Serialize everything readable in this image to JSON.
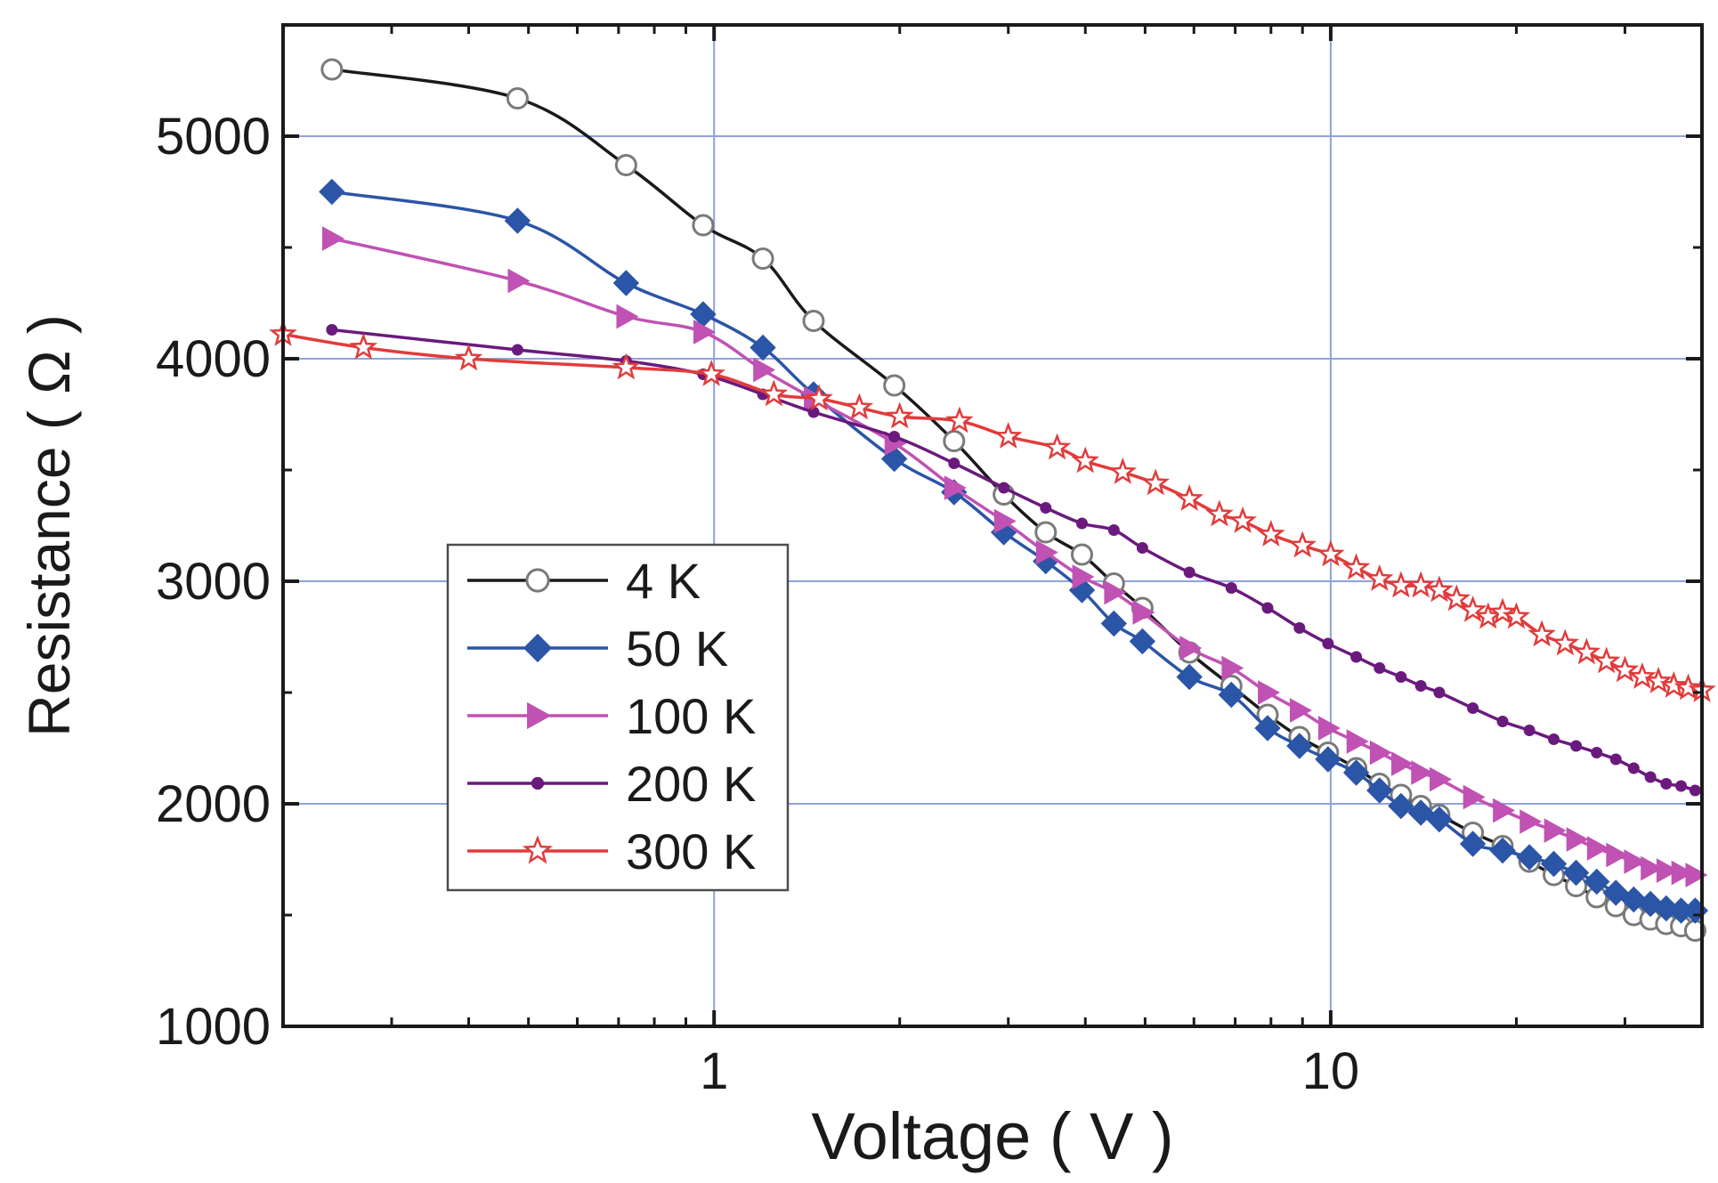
{
  "chart_data": {
    "type": "line",
    "title": "",
    "xlabel": "Voltage ( V )",
    "ylabel": "Resistance ( Ω )",
    "xscale": "log",
    "xlim": [
      0.2,
      40
    ],
    "ylim": [
      1000,
      5500
    ],
    "grid": true,
    "legend_position": "center-left",
    "x_ticks": [
      {
        "value": 1,
        "label": "1"
      },
      {
        "value": 10,
        "label": "10"
      }
    ],
    "y_ticks": [
      {
        "value": 1000,
        "label": "1000"
      },
      {
        "value": 2000,
        "label": "2000"
      },
      {
        "value": 3000,
        "label": "3000"
      },
      {
        "value": 4000,
        "label": "4000"
      },
      {
        "value": 5000,
        "label": "5000"
      }
    ],
    "series": [
      {
        "name": "4 K",
        "color": "#1a1a1a",
        "marker": "open-circle",
        "x": [
          0.24,
          0.48,
          0.72,
          0.96,
          1.2,
          1.45,
          1.96,
          2.45,
          2.95,
          3.45,
          3.95,
          4.45,
          4.95,
          5.9,
          6.9,
          7.9,
          8.9,
          9.9,
          11,
          12,
          13,
          14,
          15,
          17,
          19,
          21,
          23,
          25,
          27,
          29,
          31,
          33,
          35,
          37,
          39
        ],
        "values": [
          5300,
          5170,
          4870,
          4600,
          4450,
          4170,
          3880,
          3630,
          3390,
          3220,
          3120,
          2990,
          2880,
          2680,
          2530,
          2400,
          2300,
          2230,
          2160,
          2090,
          2040,
          1990,
          1950,
          1870,
          1810,
          1740,
          1680,
          1630,
          1580,
          1540,
          1500,
          1480,
          1460,
          1450,
          1430
        ]
      },
      {
        "name": "50 K",
        "color": "#2b55a6",
        "marker": "filled-diamond",
        "x": [
          0.24,
          0.48,
          0.72,
          0.96,
          1.2,
          1.45,
          1.96,
          2.45,
          2.95,
          3.45,
          3.95,
          4.45,
          4.95,
          5.9,
          6.9,
          7.9,
          8.9,
          9.9,
          11,
          12,
          13,
          14,
          15,
          17,
          19,
          21,
          23,
          25,
          27,
          29,
          31,
          33,
          35,
          37,
          39
        ],
        "values": [
          4750,
          4620,
          4340,
          4200,
          4050,
          3840,
          3550,
          3400,
          3220,
          3090,
          2960,
          2810,
          2730,
          2570,
          2490,
          2340,
          2260,
          2200,
          2140,
          2060,
          1990,
          1960,
          1930,
          1820,
          1790,
          1760,
          1730,
          1690,
          1650,
          1600,
          1570,
          1550,
          1530,
          1520,
          1520
        ]
      },
      {
        "name": "100 K",
        "color": "#c052b3",
        "marker": "filled-triangle-right",
        "x": [
          0.24,
          0.48,
          0.72,
          0.96,
          1.2,
          1.45,
          1.96,
          2.45,
          2.95,
          3.45,
          3.95,
          4.45,
          4.95,
          5.9,
          6.9,
          7.9,
          8.9,
          9.9,
          11,
          12,
          13,
          14,
          15,
          17,
          19,
          21,
          23,
          25,
          27,
          29,
          31,
          33,
          35,
          37,
          39
        ],
        "values": [
          4540,
          4350,
          4190,
          4120,
          3950,
          3820,
          3620,
          3420,
          3270,
          3130,
          3020,
          2950,
          2860,
          2700,
          2610,
          2500,
          2420,
          2340,
          2280,
          2230,
          2180,
          2140,
          2110,
          2030,
          1970,
          1920,
          1880,
          1840,
          1800,
          1770,
          1740,
          1710,
          1700,
          1690,
          1680
        ]
      },
      {
        "name": "200 K",
        "color": "#6a1a7d",
        "marker": "small-dot",
        "x": [
          0.24,
          0.48,
          0.72,
          0.96,
          1.2,
          1.45,
          1.96,
          2.45,
          2.95,
          3.45,
          3.95,
          4.45,
          4.95,
          5.9,
          6.9,
          7.9,
          8.9,
          9.9,
          11,
          12,
          13,
          14,
          15,
          17,
          19,
          21,
          23,
          25,
          27,
          29,
          31,
          33,
          35,
          37,
          39
        ],
        "values": [
          4130,
          4040,
          3990,
          3930,
          3840,
          3760,
          3650,
          3530,
          3420,
          3330,
          3260,
          3230,
          3150,
          3040,
          2970,
          2880,
          2790,
          2720,
          2660,
          2610,
          2570,
          2530,
          2500,
          2430,
          2370,
          2330,
          2290,
          2260,
          2230,
          2200,
          2160,
          2120,
          2090,
          2080,
          2060
        ]
      },
      {
        "name": "300 K",
        "color": "#e23b3b",
        "marker": "open-star",
        "x": [
          0.2,
          0.27,
          0.4,
          0.72,
          0.99,
          1.25,
          1.48,
          1.72,
          2,
          2.5,
          3,
          3.6,
          4,
          4.6,
          5.2,
          5.9,
          6.6,
          7.2,
          8,
          9,
          10,
          11,
          12,
          13,
          14,
          15,
          16,
          17,
          18,
          19,
          20,
          22,
          24,
          26,
          28,
          30,
          32,
          34,
          36,
          38,
          40
        ],
        "values": [
          4110,
          4050,
          4000,
          3960,
          3930,
          3840,
          3820,
          3780,
          3740,
          3720,
          3650,
          3600,
          3540,
          3490,
          3440,
          3370,
          3300,
          3270,
          3210,
          3160,
          3120,
          3060,
          3010,
          2980,
          2980,
          2960,
          2920,
          2870,
          2840,
          2860,
          2840,
          2760,
          2720,
          2680,
          2640,
          2600,
          2570,
          2550,
          2530,
          2520,
          2510
        ]
      }
    ]
  }
}
